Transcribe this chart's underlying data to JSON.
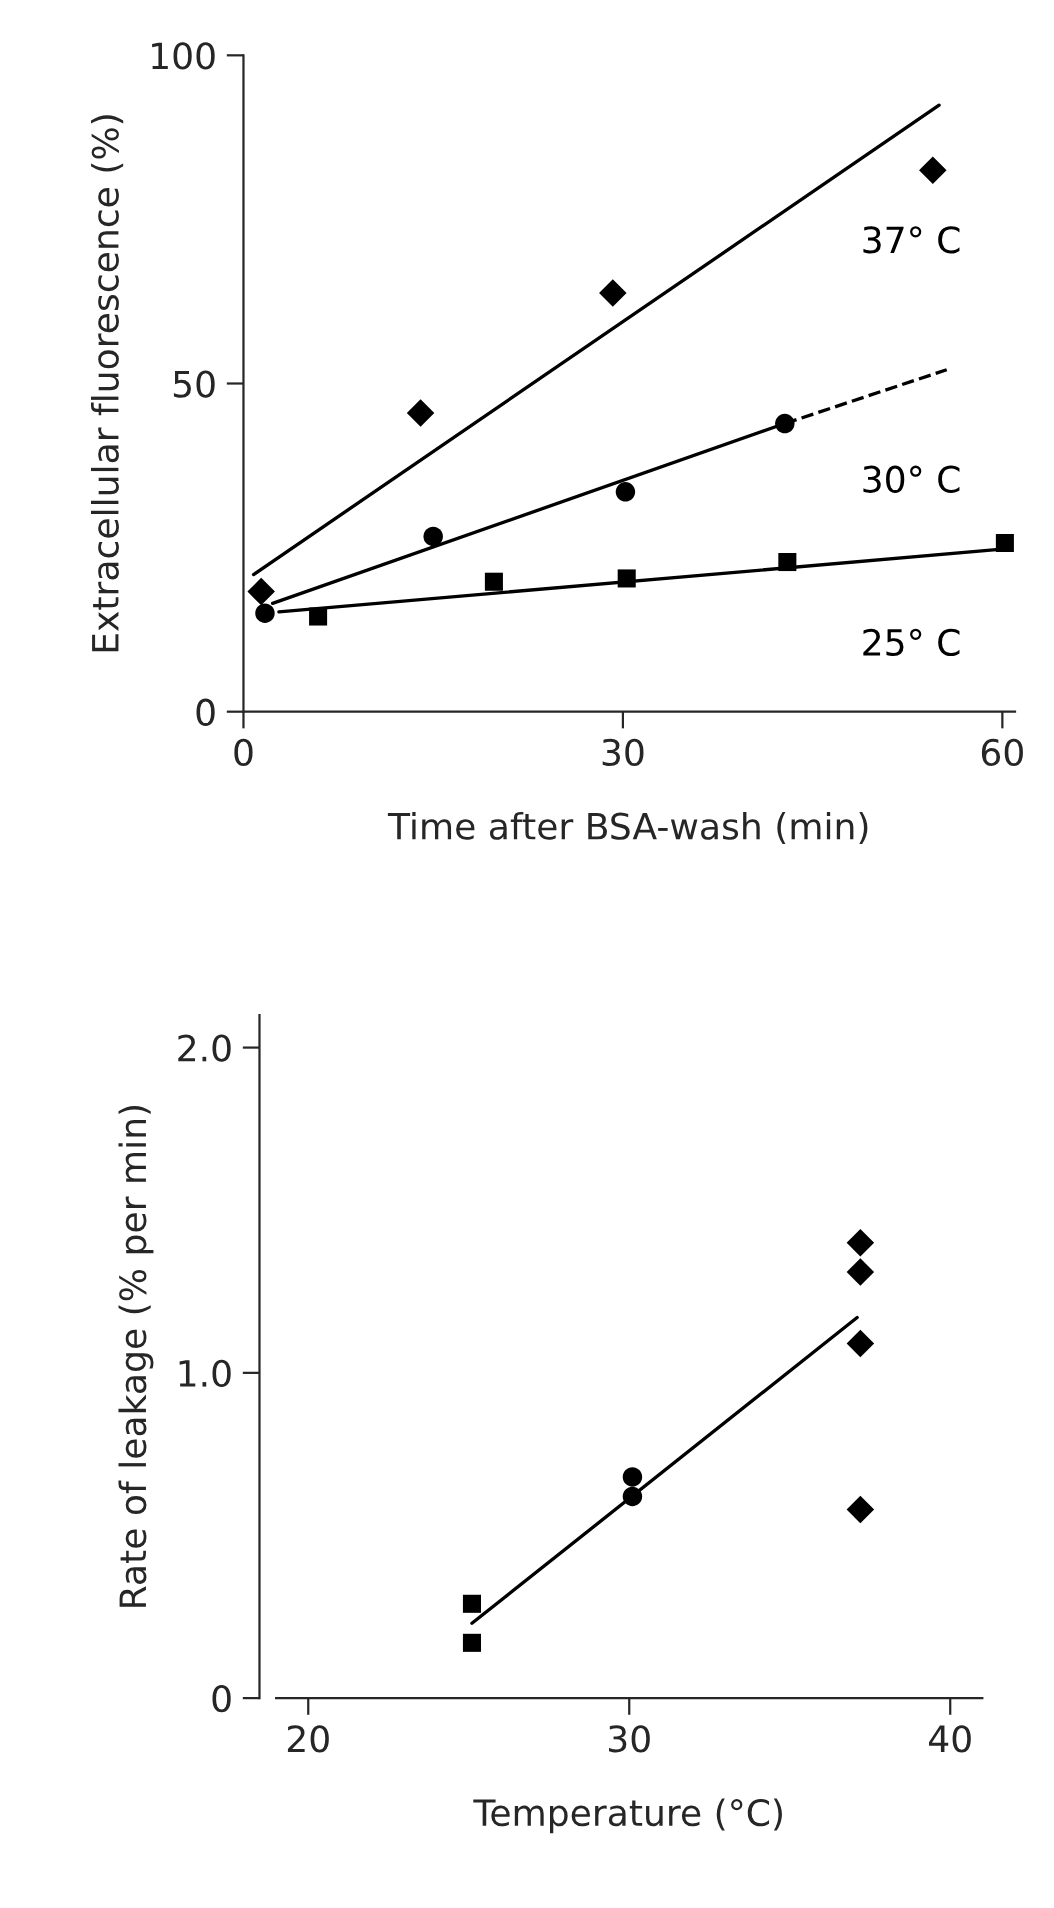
{
  "chart_data": [
    {
      "type": "scatter",
      "xlabel": "Time after BSA-wash (min)",
      "ylabel": "Extracellular fluorescence (%)",
      "xlim": [
        0,
        61
      ],
      "ylim": [
        0,
        100
      ],
      "xticks": [
        0,
        30,
        60
      ],
      "yticks": [
        0,
        50,
        100
      ],
      "grid": false,
      "legend": false,
      "series": [
        {
          "type": "scatter",
          "marker": "diamond",
          "color": "#000000",
          "x": [
            1.4,
            14.0,
            29.2,
            54.5
          ],
          "values": [
            18.3,
            45.5,
            63.8,
            82.5
          ]
        },
        {
          "type": "scatter",
          "marker": "circle",
          "color": "#000000",
          "x": [
            1.7,
            15.0,
            30.2,
            42.8
          ],
          "values": [
            15.0,
            26.7,
            33.5,
            43.9
          ]
        },
        {
          "type": "scatter",
          "marker": "square",
          "color": "#000000",
          "x": [
            5.9,
            19.8,
            30.3,
            43.0,
            60.2
          ],
          "values": [
            14.5,
            19.8,
            20.3,
            22.8,
            25.7
          ]
        },
        {
          "type": "line",
          "name": "37° C",
          "line_style": "solid",
          "color": "#000000",
          "x": [
            0.8,
            55.0
          ],
          "values": [
            20.9,
            92.4
          ]
        },
        {
          "type": "line",
          "line_style": "solid",
          "color": "#000000",
          "x": [
            2.3,
            42.8
          ],
          "values": [
            16.5,
            43.9
          ]
        },
        {
          "type": "line",
          "name": "30° C",
          "line_style": "dashed",
          "color": "#000000",
          "x": [
            42.8,
            55.6
          ],
          "values": [
            43.9,
            52.1
          ]
        },
        {
          "type": "line",
          "name": "25° C",
          "line_style": "solid",
          "color": "#000000",
          "x": [
            2.8,
            60.2
          ],
          "values": [
            15.2,
            24.8
          ]
        }
      ]
    },
    {
      "type": "scatter",
      "xlabel": "Temperature (°C)",
      "ylabel": "Rate of leakage (% per min)",
      "xlim": [
        19,
        41
      ],
      "ylim": [
        0,
        2.1
      ],
      "xticks": [
        20,
        30,
        40
      ],
      "yticks": [
        {
          "value": 0,
          "label": "0"
        },
        {
          "value": 1,
          "label": "1.0"
        },
        {
          "value": 2,
          "label": "2.0"
        }
      ],
      "grid": false,
      "legend": false,
      "series": [
        {
          "type": "scatter",
          "marker": "square",
          "color": "#000000",
          "x": [
            25.1,
            25.1
          ],
          "values": [
            0.29,
            0.17
          ]
        },
        {
          "type": "scatter",
          "marker": "circle",
          "color": "#000000",
          "x": [
            30.1,
            30.1
          ],
          "values": [
            0.68,
            0.62
          ]
        },
        {
          "type": "scatter",
          "marker": "diamond",
          "color": "#000000",
          "x": [
            37.2,
            37.2,
            37.2,
            37.2
          ],
          "values": [
            1.4,
            1.31,
            1.09,
            0.58
          ]
        },
        {
          "type": "line",
          "line_style": "solid",
          "color": "#000000",
          "x": [
            25.1,
            37.1
          ],
          "values": [
            0.23,
            1.17
          ]
        }
      ]
    }
  ]
}
